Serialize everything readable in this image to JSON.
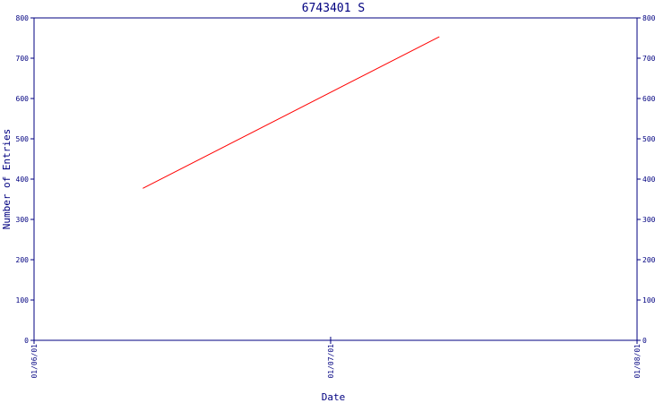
{
  "chart_data": {
    "type": "line",
    "title": "6743401 S",
    "xlabel": "Date",
    "ylabel": "Number of Entries",
    "ylim": [
      0,
      800
    ],
    "yticks": [
      0,
      100,
      200,
      300,
      400,
      500,
      600,
      700,
      800
    ],
    "y_axis_right_duplicate": true,
    "x_axis": {
      "type": "date",
      "min": "2001-06-01",
      "max": "2001-08-01",
      "ticks": [
        {
          "value": "2001-06-01",
          "label": "01/06/01"
        },
        {
          "value": "2001-07-01",
          "label": "01/07/01"
        },
        {
          "value": "2001-08-01",
          "label": "01/08/01"
        }
      ]
    },
    "grid": false,
    "legend": "none",
    "colors": {
      "axis": "#000080",
      "series": "#ff0000",
      "background": "#ffffff"
    },
    "series": [
      {
        "x": [
          "2001-06-12",
          "2001-07-12"
        ],
        "y": [
          377,
          753
        ]
      }
    ]
  }
}
